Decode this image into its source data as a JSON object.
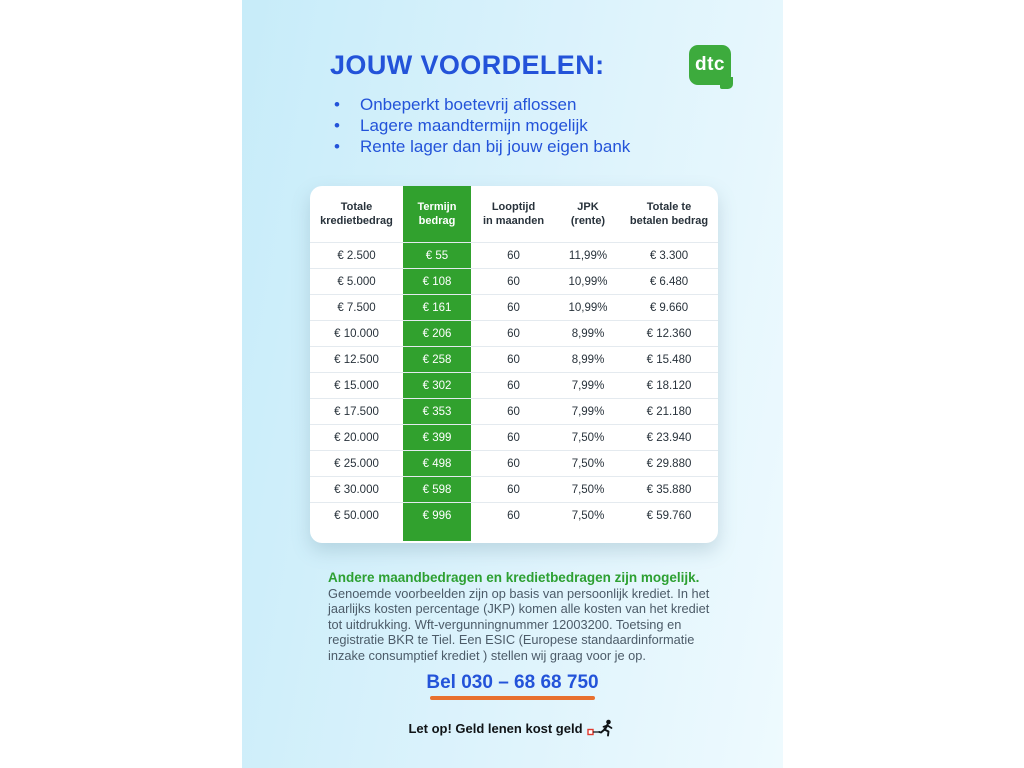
{
  "colors": {
    "accent_blue": "#2353d9",
    "table_green": "#31a12e",
    "logo_green": "#3dab3d",
    "heading_green": "#2da032",
    "underline_orange": "#e8702f",
    "background_left": "#c7ecf9",
    "background_right": "#eefafe"
  },
  "header": {
    "title": "JOUW VOORDELEN:",
    "logo_text": "dtc",
    "bullets": [
      "Onbeperkt boetevrij aflossen",
      "Lagere maandtermijn mogelijk",
      "Rente lager dan bij jouw eigen bank"
    ]
  },
  "table": {
    "columns": [
      {
        "lines": [
          "Totale",
          "kredietbedrag"
        ],
        "highlight": false
      },
      {
        "lines": [
          "Termijn",
          "bedrag"
        ],
        "highlight": true
      },
      {
        "lines": [
          "Looptijd",
          "in maanden"
        ],
        "highlight": false
      },
      {
        "lines": [
          "JPK",
          "(rente)"
        ],
        "highlight": false
      },
      {
        "lines": [
          "Totale te",
          "betalen bedrag"
        ],
        "highlight": false
      }
    ],
    "rows": [
      [
        "€ 2.500",
        "€ 55",
        "60",
        "11,99%",
        "€ 3.300"
      ],
      [
        "€ 5.000",
        "€ 108",
        "60",
        "10,99%",
        "€ 6.480"
      ],
      [
        "€ 7.500",
        "€ 161",
        "60",
        "10,99%",
        "€ 9.660"
      ],
      [
        "€ 10.000",
        "€ 206",
        "60",
        "8,99%",
        "€ 12.360"
      ],
      [
        "€ 12.500",
        "€ 258",
        "60",
        "8,99%",
        "€ 15.480"
      ],
      [
        "€ 15.000",
        "€ 302",
        "60",
        "7,99%",
        "€ 18.120"
      ],
      [
        "€ 17.500",
        "€ 353",
        "60",
        "7,99%",
        "€ 21.180"
      ],
      [
        "€ 20.000",
        "€ 399",
        "60",
        "7,50%",
        "€ 23.940"
      ],
      [
        "€ 25.000",
        "€ 498",
        "60",
        "7,50%",
        "€ 29.880"
      ],
      [
        "€ 30.000",
        "€ 598",
        "60",
        "7,50%",
        "€ 35.880"
      ],
      [
        "€ 50.000",
        "€ 996",
        "60",
        "7,50%",
        "€ 59.760"
      ]
    ]
  },
  "footer": {
    "note_title": "Andere maandbedragen en kredietbedragen zijn mogelijk.",
    "note_body": "Genoemde voorbeelden zijn op basis van persoonlijk krediet. In het jaarlijks kosten percentage (JKP) komen alle kosten van het krediet tot uitdrukking. Wft-vergunningnummer 12003200. Toetsing en registratie BKR te Tiel. Een ESIC (Europese standaardinformatie inzake consumptief krediet ) stellen wij graag voor je op.",
    "phone": "Bel 030 – 68 68 750",
    "warning": "Let op! Geld lenen kost geld"
  }
}
